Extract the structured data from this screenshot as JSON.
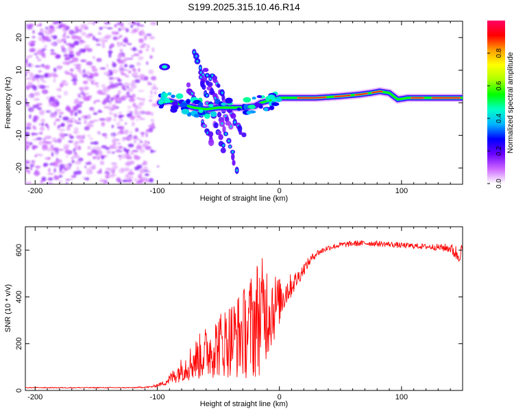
{
  "title": "S199.2025.315.10.46.R14",
  "chart_data": [
    {
      "type": "heatmap",
      "name": "spectrogram",
      "xlabel": "Height of straight line (km)",
      "ylabel": "Frequency (Hz)",
      "xlim": [
        -208,
        150
      ],
      "ylim": [
        -25,
        25
      ],
      "xticks": [
        -200,
        -100,
        0,
        100
      ],
      "yticks": [
        -20,
        -10,
        0,
        10,
        20
      ],
      "colorbar": {
        "label": "Normalized spectral amplitude",
        "range": [
          0,
          1
        ],
        "ticks": [
          0.0,
          0.2,
          0.4,
          0.6,
          0.8
        ],
        "stops": [
          "#ffffff",
          "#cc66ff",
          "#6a00ff",
          "#0000ff",
          "#00b4ff",
          "#00ffc8",
          "#00ff00",
          "#aaff00",
          "#ffff00",
          "#ffa000",
          "#ff0000",
          "#ff0066"
        ]
      },
      "features": {
        "noise_region_km": [
          -208,
          -98
        ],
        "ridge": [
          {
            "x": -98,
            "y": 0.0
          },
          {
            "x": -90,
            "y": 0.5
          },
          {
            "x": -80,
            "y": -0.5
          },
          {
            "x": -70,
            "y": -1.5
          },
          {
            "x": -60,
            "y": -2.0
          },
          {
            "x": -50,
            "y": -1.5
          },
          {
            "x": -40,
            "y": -1.5
          },
          {
            "x": -30,
            "y": -1.5
          },
          {
            "x": -20,
            "y": -1.0
          },
          {
            "x": -15,
            "y": 0.0
          },
          {
            "x": -10,
            "y": 0.5
          },
          {
            "x": 0,
            "y": 1.5
          },
          {
            "x": 10,
            "y": 1.5
          },
          {
            "x": 30,
            "y": 1.5
          },
          {
            "x": 50,
            "y": 2.0
          },
          {
            "x": 65,
            "y": 2.5
          },
          {
            "x": 75,
            "y": 3.0
          },
          {
            "x": 82,
            "y": 3.5
          },
          {
            "x": 90,
            "y": 3.0
          },
          {
            "x": 97,
            "y": 1.0
          },
          {
            "x": 105,
            "y": 1.5
          },
          {
            "x": 120,
            "y": 1.5
          },
          {
            "x": 150,
            "y": 1.5
          }
        ],
        "streaks": [
          {
            "x0": -70,
            "y0": 15,
            "x1": -40,
            "y1": -8
          },
          {
            "x0": -60,
            "y0": 10,
            "x1": -35,
            "y1": -20
          },
          {
            "x0": -55,
            "y0": 9,
            "x1": -30,
            "y1": -10
          },
          {
            "x0": -75,
            "y0": 5,
            "x1": -55,
            "y1": -12
          },
          {
            "x0": -65,
            "y0": 8,
            "x1": -45,
            "y1": -15
          }
        ],
        "blob": {
          "x": -94,
          "y": 11
        }
      }
    },
    {
      "type": "line",
      "name": "snr",
      "xlabel": "Height of straight line (km)",
      "ylabel": "SNR (10 * v/v)",
      "xlim": [
        -208,
        150
      ],
      "ylim": [
        0,
        700
      ],
      "xticks": [
        -200,
        -100,
        0,
        100
      ],
      "yticks": [
        0,
        200,
        400,
        600
      ],
      "color": "#ff0000",
      "x": [
        -208,
        -180,
        -150,
        -120,
        -105,
        -95,
        -88,
        -80,
        -72,
        -65,
        -58,
        -50,
        -42,
        -35,
        -28,
        -22,
        -18,
        -14,
        -10,
        -6,
        -3,
        0,
        5,
        10,
        15,
        20,
        25,
        30,
        40,
        50,
        60,
        70,
        80,
        90,
        100,
        110,
        120,
        130,
        140,
        146,
        150
      ],
      "y": [
        12,
        12,
        12,
        12,
        15,
        30,
        55,
        90,
        120,
        145,
        170,
        195,
        215,
        230,
        250,
        280,
        310,
        330,
        350,
        360,
        365,
        380,
        420,
        450,
        480,
        520,
        555,
        585,
        610,
        622,
        628,
        630,
        628,
        625,
        620,
        618,
        615,
        612,
        608,
        580,
        600
      ],
      "noise_amplitude": [
        2,
        2,
        2,
        2,
        4,
        10,
        30,
        50,
        80,
        100,
        120,
        140,
        160,
        180,
        200,
        240,
        260,
        240,
        220,
        180,
        140,
        100,
        70,
        50,
        35,
        25,
        20,
        15,
        12,
        12,
        12,
        12,
        12,
        12,
        12,
        12,
        12,
        14,
        20,
        40,
        30
      ]
    }
  ]
}
